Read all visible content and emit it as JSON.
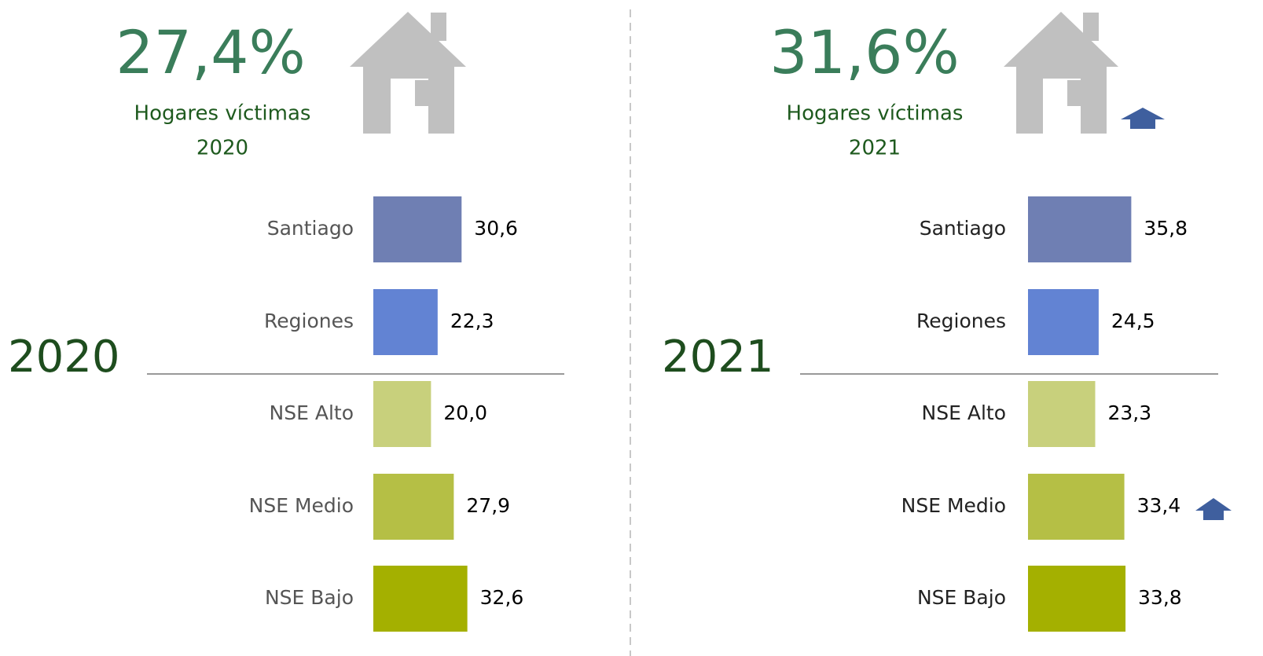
{
  "chart_data": [
    {
      "type": "bar",
      "headline": "27,4%",
      "subtitle": "Hogares víctimas",
      "subtitle_year": "2020",
      "year": "2020",
      "categories": [
        "Santiago",
        "Regiones",
        "NSE Alto",
        "NSE Medio",
        "NSE Bajo"
      ],
      "values": [
        30.6,
        22.3,
        20.0,
        27.9,
        32.6
      ],
      "value_labels": [
        "30,6",
        "22,3",
        "20,0",
        "27,9",
        "32,6"
      ],
      "colors": [
        "#6f7fb3",
        "#6283d3",
        "#c8d07c",
        "#b5bf45",
        "#a4b000"
      ]
    },
    {
      "type": "bar",
      "headline": "31,6%",
      "subtitle": "Hogares víctimas",
      "subtitle_year": "2021",
      "year": "2021",
      "categories": [
        "Santiago",
        "Regiones",
        "NSE Alto",
        "NSE Medio",
        "NSE Bajo"
      ],
      "values": [
        35.8,
        24.5,
        23.3,
        33.4,
        33.8
      ],
      "value_labels": [
        "35,8",
        "24,5",
        "23,3",
        "33,4",
        "33,8"
      ],
      "colors": [
        "#6f7fb3",
        "#6283d3",
        "#c8d07c",
        "#b5bf45",
        "#a4b000"
      ]
    }
  ]
}
